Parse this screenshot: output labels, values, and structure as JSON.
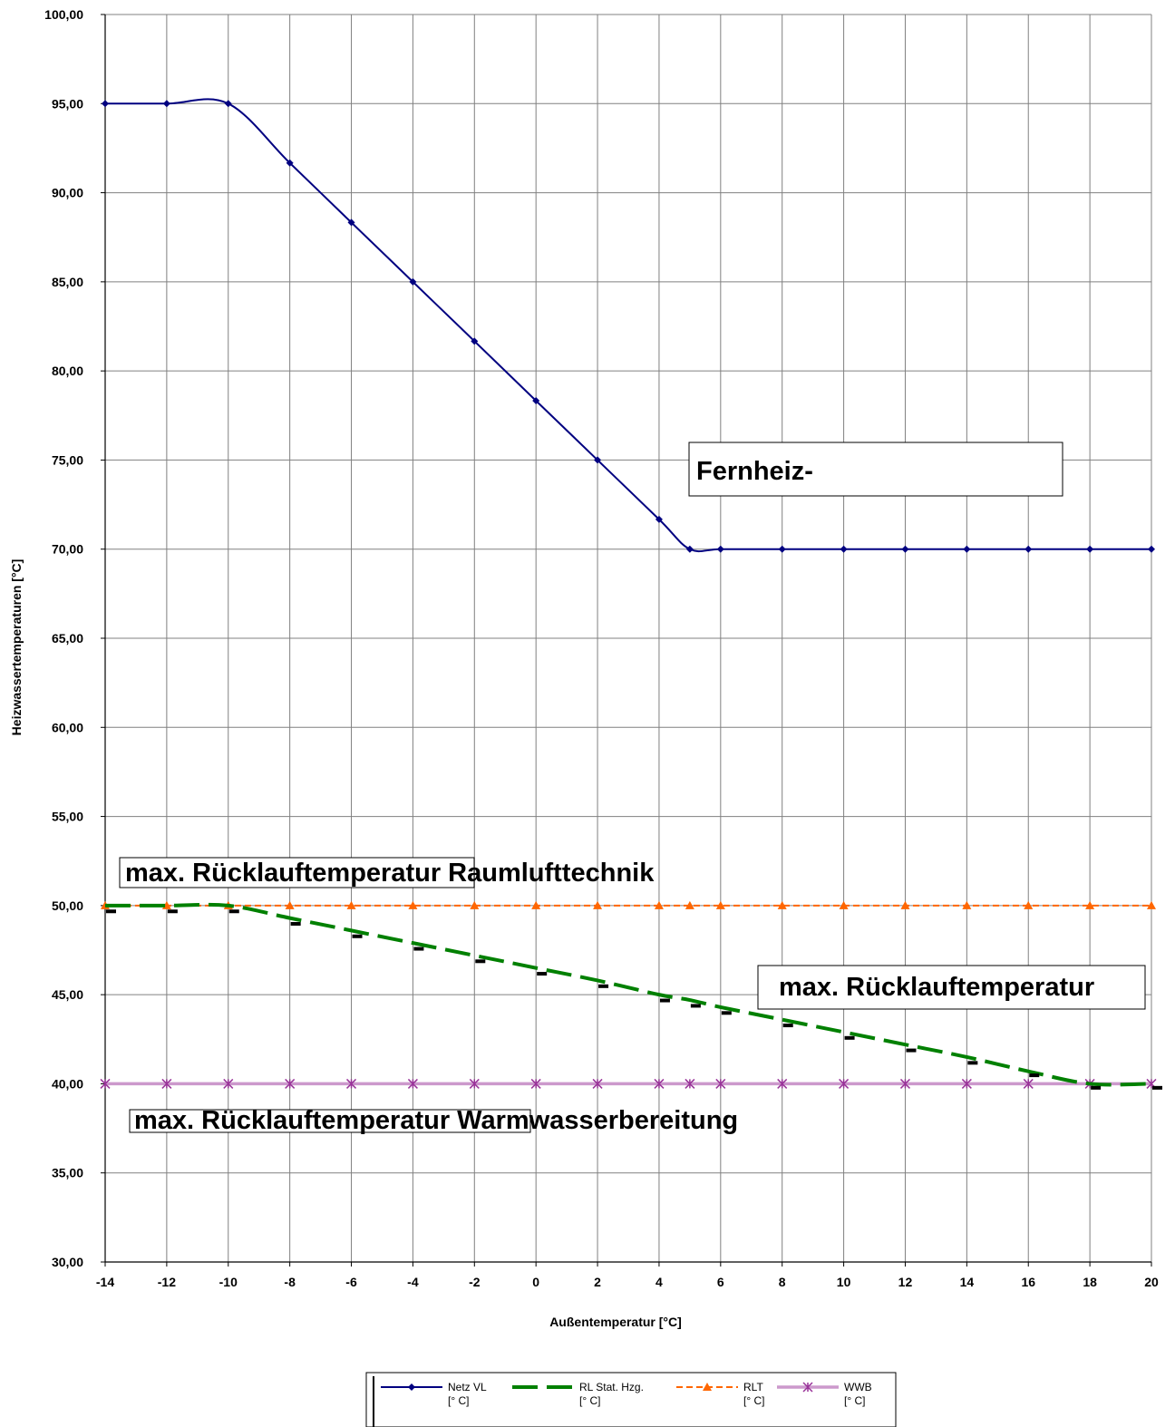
{
  "chart_data": {
    "type": "line",
    "title": "",
    "xlabel": "Außentemperatur [°C]",
    "ylabel": "Heizwassertemperaturen [°C]",
    "xlim": [
      -14,
      20
    ],
    "ylim": [
      30,
      100
    ],
    "x_ticks": [
      "-14",
      "-12",
      "-10",
      "-8",
      "-6",
      "-4",
      "-2",
      "0",
      "2",
      "4",
      "6",
      "8",
      "10",
      "12",
      "14",
      "16",
      "18",
      "20"
    ],
    "y_ticks": [
      "30,00",
      "35,00",
      "40,00",
      "45,00",
      "50,00",
      "55,00",
      "60,00",
      "65,00",
      "70,00",
      "75,00",
      "80,00",
      "85,00",
      "90,00",
      "95,00",
      "100,00"
    ],
    "grid": true,
    "legend_position": "bottom",
    "series": [
      {
        "name": "Netz VL",
        "unit": "[° C]",
        "color": "#000080",
        "line_style": "solid",
        "marker": "diamond",
        "x": [
          -14,
          -12,
          -10,
          -8,
          -6,
          -4,
          -2,
          0,
          2,
          4,
          5,
          6,
          8,
          10,
          12,
          14,
          16,
          18,
          20
        ],
        "y": [
          95,
          95,
          95,
          91.67,
          88.33,
          85,
          81.67,
          78.33,
          75,
          71.67,
          70,
          70,
          70,
          70,
          70,
          70,
          70,
          70,
          70
        ]
      },
      {
        "name": "RL Stat. Hzg.",
        "unit": "[° C]",
        "color": "#008000",
        "line_style": "long-dash",
        "marker": "dash",
        "x": [
          -14,
          -12,
          -10,
          -8,
          -6,
          -4,
          -2,
          0,
          2,
          4,
          5,
          6,
          8,
          10,
          12,
          14,
          16,
          18,
          20
        ],
        "y": [
          50,
          50,
          50,
          49.3,
          48.6,
          47.9,
          47.2,
          46.5,
          45.8,
          45,
          44.7,
          44.3,
          43.6,
          42.9,
          42.2,
          41.5,
          40.7,
          40,
          40
        ]
      },
      {
        "name": "RLT",
        "unit": "[° C]",
        "color": "#FF6600",
        "line_style": "short-dash",
        "marker": "triangle",
        "x": [
          -14,
          -12,
          -10,
          -8,
          -6,
          -4,
          -2,
          0,
          2,
          4,
          5,
          6,
          8,
          10,
          12,
          14,
          16,
          18,
          20
        ],
        "y": [
          50,
          50,
          50,
          50,
          50,
          50,
          50,
          50,
          50,
          50,
          50,
          50,
          50,
          50,
          50,
          50,
          50,
          50,
          50
        ]
      },
      {
        "name": "WWB",
        "unit": "[° C]",
        "color": "#CC99CC",
        "line_style": "solid",
        "marker": "asterisk",
        "x": [
          -14,
          -12,
          -10,
          -8,
          -6,
          -4,
          -2,
          0,
          2,
          4,
          5,
          6,
          8,
          10,
          12,
          14,
          16,
          18,
          20
        ],
        "y": [
          40,
          40,
          40,
          40,
          40,
          40,
          40,
          40,
          40,
          40,
          40,
          40,
          40,
          40,
          40,
          40,
          40,
          40,
          40
        ]
      }
    ],
    "extra_markers": {
      "color": "#000000",
      "x": [
        -14,
        -12,
        -10,
        -8,
        -6,
        -4,
        -2,
        0,
        2,
        4,
        5,
        6,
        8,
        10,
        12,
        14,
        16,
        18,
        20
      ],
      "y": [
        49.7,
        49.7,
        49.7,
        49,
        48.3,
        47.6,
        46.9,
        46.2,
        45.5,
        44.7,
        44.4,
        44,
        43.3,
        42.6,
        41.9,
        41.2,
        40.5,
        39.8,
        39.8
      ]
    },
    "annotations": [
      "Fernheiz-",
      "max. Rücklauftemperatur Raumlufttechnik",
      "max. Rücklauftemperatur",
      "max. Rücklauftemperatur Warmwasserbereitung"
    ]
  }
}
